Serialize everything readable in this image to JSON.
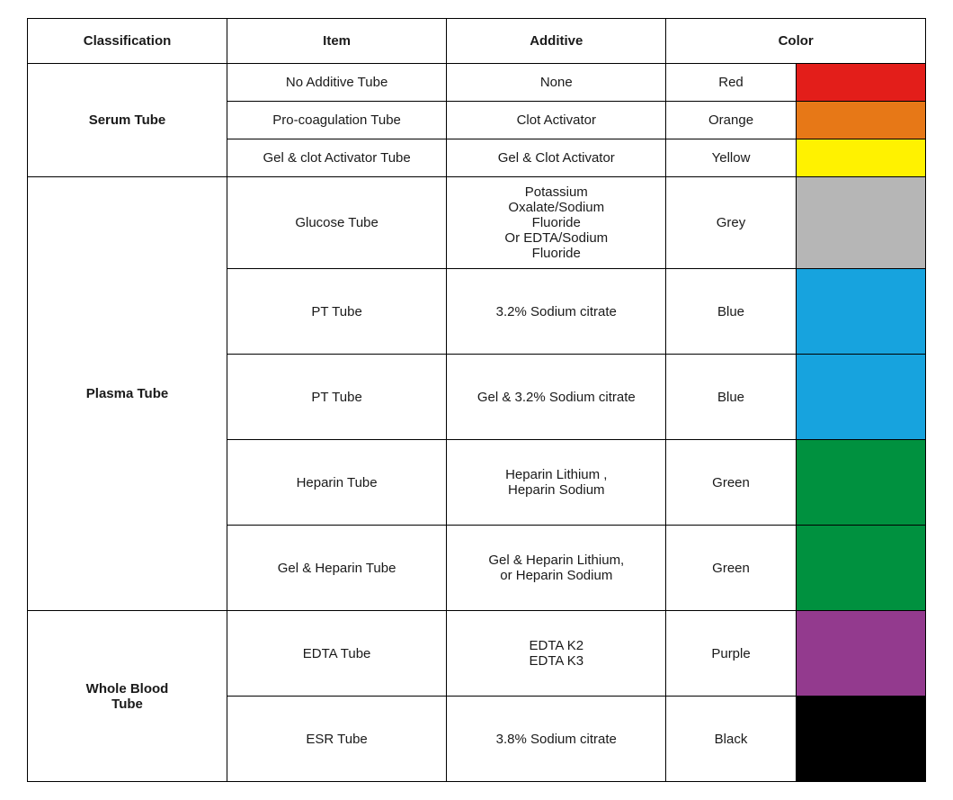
{
  "table": {
    "headers": {
      "classification": "Classification",
      "item": "Item",
      "additive": "Additive",
      "color": "Color"
    },
    "border_color": "#000000",
    "background_color": "#ffffff",
    "text_color": "#1a1a1a",
    "font_size": 15,
    "groups": [
      {
        "classification": "Serum Tube",
        "rows": [
          {
            "item": "No Additive Tube",
            "additive": "None",
            "color_name": "Red",
            "swatch": "#E31E1A",
            "height_class": "h-small"
          },
          {
            "item": "Pro-coagulation Tube",
            "additive": "Clot  Activator",
            "color_name": "Orange",
            "swatch": "#E77817",
            "height_class": "h-small"
          },
          {
            "item": "Gel & clot Activator Tube",
            "additive": "Gel & Clot  Activator",
            "color_name": "Yellow",
            "swatch": "#FFF200",
            "height_class": "h-small"
          }
        ]
      },
      {
        "classification": "Plasma Tube",
        "rows": [
          {
            "item": "Glucose Tube",
            "additive": "Potassium\nOxalate/Sodium\nFluoride\nOr EDTA/Sodium\nFluoride",
            "color_name": "Grey",
            "swatch": "#B6B6B6",
            "height_class": "h-glucose"
          },
          {
            "item": "PT Tube",
            "additive": "3.2% Sodium citrate",
            "color_name": "Blue",
            "swatch": "#17A3DE",
            "height_class": "h-big"
          },
          {
            "item": "PT Tube",
            "additive": "Gel & 3.2% Sodium citrate",
            "color_name": "Blue",
            "swatch": "#17A3DE",
            "height_class": "h-big"
          },
          {
            "item": "Heparin  Tube",
            "additive": "Heparin Lithium ,\nHeparin Sodium",
            "color_name": "Green",
            "swatch": "#00913F",
            "height_class": "h-big"
          },
          {
            "item": "Gel & Heparin  Tube",
            "additive": "Gel &  Heparin Lithium,\nor Heparin Sodium",
            "color_name": "Green",
            "swatch": "#00913F",
            "height_class": "h-big"
          }
        ]
      },
      {
        "classification": "Whole Blood\nTube",
        "rows": [
          {
            "item": "EDTA Tube",
            "additive": "EDTA  K2\nEDTA  K3",
            "color_name": "Purple",
            "swatch": "#933A8E",
            "height_class": "h-big"
          },
          {
            "item": "ESR Tube",
            "additive": "3.8% Sodium citrate",
            "color_name": "Black",
            "swatch": "#000000",
            "height_class": "h-big"
          }
        ]
      }
    ]
  }
}
